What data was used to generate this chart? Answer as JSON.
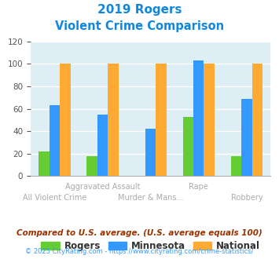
{
  "title_line1": "2019 Rogers",
  "title_line2": "Violent Crime Comparison",
  "categories": [
    "All Violent Crime",
    "Aggravated Assault",
    "Murder & Mans...",
    "Rape",
    "Robbery"
  ],
  "series": {
    "Rogers": [
      22,
      18,
      0,
      53,
      18
    ],
    "Minnesota": [
      63,
      55,
      42,
      103,
      69
    ],
    "National": [
      100,
      100,
      100,
      100,
      100
    ]
  },
  "colors": {
    "Rogers": "#66cc33",
    "Minnesota": "#3399ff",
    "National": "#ffaa33"
  },
  "ylim": [
    0,
    120
  ],
  "yticks": [
    0,
    20,
    40,
    60,
    80,
    100,
    120
  ],
  "top_row_labels": {
    "1": "Aggravated Assault",
    "3": "Rape"
  },
  "bottom_row_labels": {
    "0": "All Violent Crime",
    "2": "Murder & Mans...",
    "4": "Robbery"
  },
  "footer_text1": "Compared to U.S. average. (U.S. average equals 100)",
  "footer_text2": "© 2025 CityRating.com - https://www.cityrating.com/crime-statistics/",
  "title_color": "#1188dd",
  "footer1_color": "#993300",
  "footer2_color": "#3399ff",
  "plot_bg": "#ddeef5"
}
